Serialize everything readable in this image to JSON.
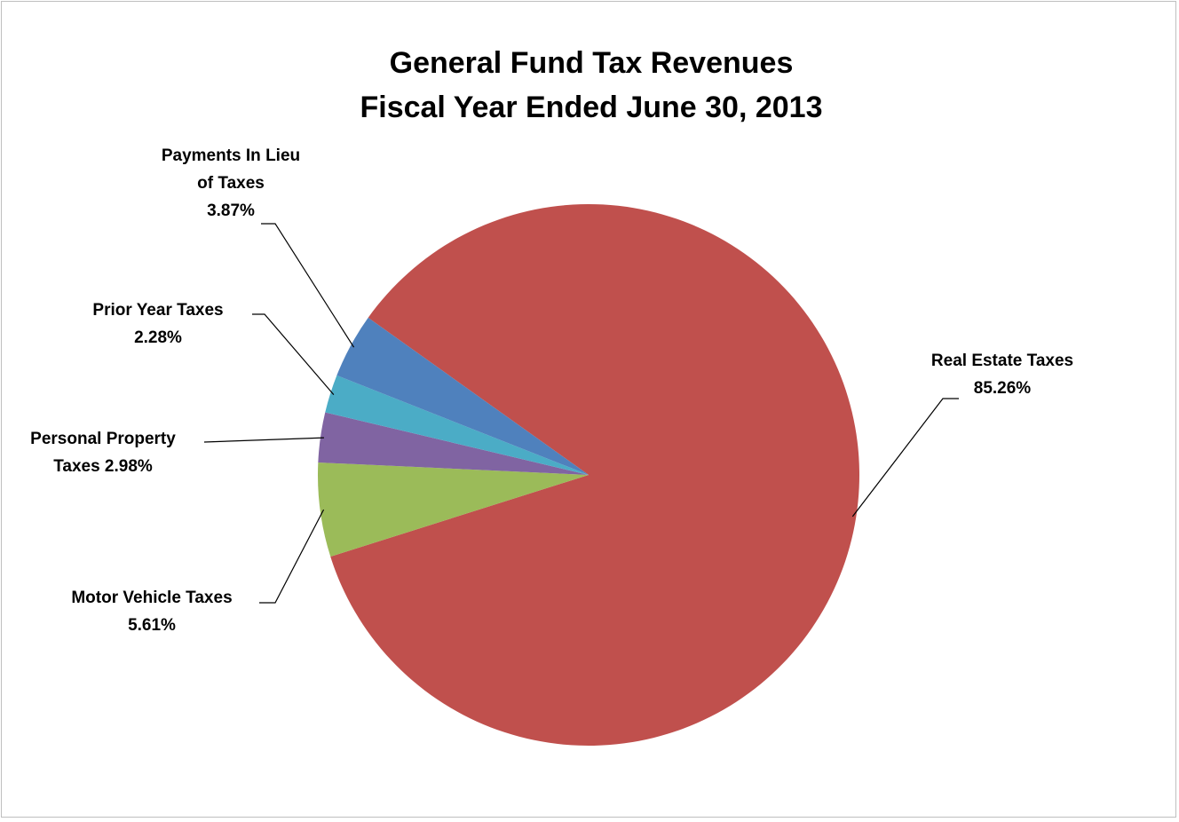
{
  "chart_data": {
    "type": "pie",
    "title": [
      "General Fund Tax Revenues",
      "Fiscal Year Ended June 30, 2013"
    ],
    "slices": [
      {
        "name": "Real Estate Taxes",
        "label_lines": [
          "Real Estate Taxes",
          "85.26%"
        ],
        "value": 85.26,
        "color": "#c0504d"
      },
      {
        "name": "Motor Vehicle Taxes",
        "label_lines": [
          "Motor Vehicle Taxes",
          "5.61%"
        ],
        "value": 5.61,
        "color": "#9bbb59"
      },
      {
        "name": "Personal Property Taxes",
        "label_lines": [
          "Personal Property",
          "Taxes 2.98%"
        ],
        "value": 2.98,
        "color": "#8064a2"
      },
      {
        "name": "Prior Year Taxes",
        "label_lines": [
          "Prior Year Taxes",
          "2.28%"
        ],
        "value": 2.28,
        "color": "#4bacc6"
      },
      {
        "name": "Payments In Lieu of Taxes",
        "label_lines": [
          "Payments In Lieu",
          "of Taxes",
          "3.87%"
        ],
        "value": 3.87,
        "color": "#4f81bd"
      }
    ],
    "legend": "none"
  }
}
